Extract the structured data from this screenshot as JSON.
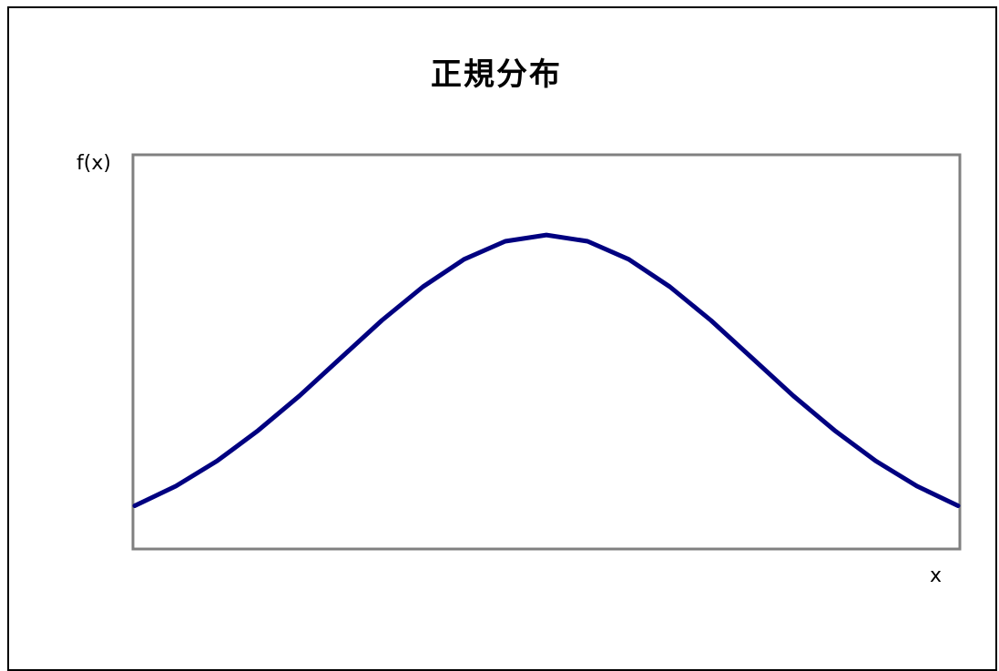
{
  "chart_data": {
    "type": "line",
    "title": "正規分布",
    "xlabel": "x",
    "ylabel": "f(x)",
    "xlim": [
      -2,
      2
    ],
    "ylim": [
      0,
      0.5
    ],
    "grid": false,
    "legend": "none",
    "series": [
      {
        "color": "#000080",
        "x": [
          -2.0,
          -1.8,
          -1.6,
          -1.4,
          -1.2,
          -1.0,
          -0.8,
          -0.6,
          -0.4,
          -0.2,
          0.0,
          0.2,
          0.4,
          0.6,
          0.8,
          1.0,
          1.2,
          1.4,
          1.6,
          1.8,
          2.0
        ],
        "y": [
          0.054,
          0.079,
          0.111,
          0.15,
          0.194,
          0.242,
          0.29,
          0.333,
          0.368,
          0.391,
          0.399,
          0.391,
          0.368,
          0.333,
          0.29,
          0.242,
          0.194,
          0.15,
          0.111,
          0.079,
          0.054
        ]
      }
    ]
  },
  "colors": {
    "line": "#000080",
    "plot_border": "#808080",
    "frame_border": "#000000"
  }
}
